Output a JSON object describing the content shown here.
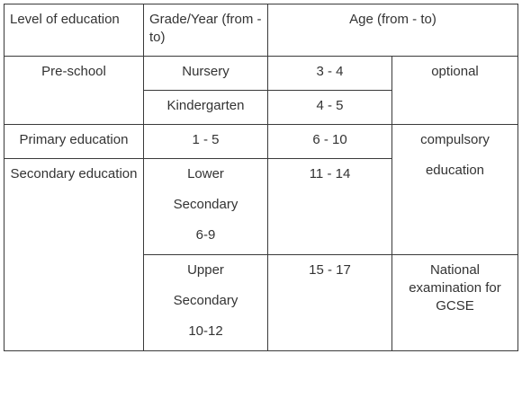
{
  "header": {
    "level": "Level of education",
    "grade": "Grade/Year  (from - to)",
    "age": "Age (from - to)"
  },
  "rows": {
    "preschool": {
      "level": "Pre-school",
      "nursery_grade": "Nursery",
      "nursery_age": "3 - 4",
      "kindergarten_grade": "Kindergarten",
      "kindergarten_age": "4 - 5",
      "note": "optional"
    },
    "primary": {
      "level": "Primary education",
      "grade": "1 - 5",
      "age": "6 - 10",
      "note_line1": "compulsory",
      "note_line2": "education"
    },
    "secondary": {
      "level": "Secondary education",
      "lower_line1": "Lower",
      "lower_line2": "Secondary",
      "lower_line3": "6-9",
      "lower_age": "11 - 14",
      "upper_line1": "Upper",
      "upper_line2": "Secondary",
      "upper_line3": "10-12",
      "upper_age": "15 - 17",
      "upper_note": "National examination for GCSE"
    }
  }
}
